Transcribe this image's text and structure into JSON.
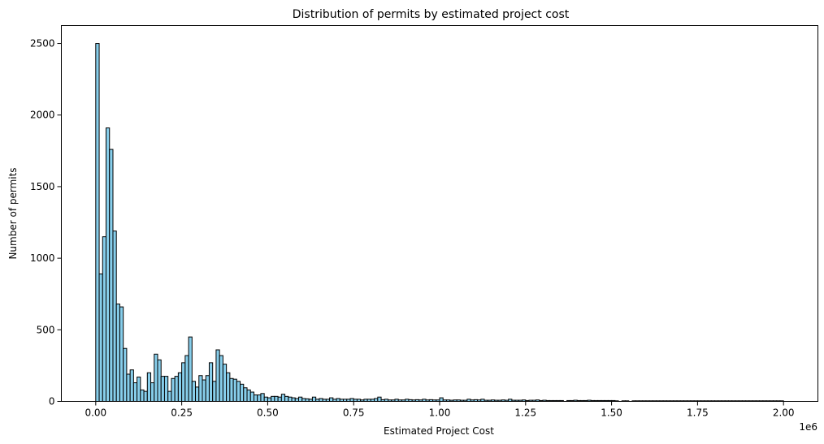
{
  "chart_data": {
    "type": "bar",
    "title": "Distribution of permits by estimated project cost",
    "xlabel": "Estimated Project Cost",
    "ylabel": "Number of permits",
    "x_offset_text": "1e6",
    "xlim": [
      -0.1,
      2.1
    ],
    "ylim": [
      0,
      2625
    ],
    "x_ticks": [
      0.0,
      0.25,
      0.5,
      0.75,
      1.0,
      1.25,
      1.5,
      1.75,
      2.0
    ],
    "x_tick_labels": [
      "0.00",
      "0.25",
      "0.50",
      "0.75",
      "1.00",
      "1.25",
      "1.50",
      "1.75",
      "2.00"
    ],
    "y_ticks": [
      0,
      500,
      1000,
      1500,
      2000,
      2500
    ],
    "y_tick_labels": [
      "0",
      "500",
      "1000",
      "1500",
      "2000",
      "2500"
    ],
    "grid": false,
    "legend": "none",
    "bin_start": 0.0,
    "bin_width": 0.01,
    "bar_color": "#87CEEB",
    "edge_color": "#000000",
    "values": [
      2500,
      890,
      1150,
      1910,
      1760,
      1190,
      680,
      660,
      370,
      190,
      220,
      130,
      170,
      80,
      70,
      200,
      130,
      330,
      290,
      175,
      175,
      70,
      160,
      175,
      200,
      270,
      320,
      450,
      140,
      100,
      180,
      150,
      180,
      270,
      140,
      360,
      320,
      260,
      200,
      160,
      155,
      140,
      120,
      95,
      80,
      65,
      45,
      45,
      55,
      30,
      25,
      35,
      35,
      30,
      50,
      35,
      30,
      25,
      20,
      30,
      20,
      18,
      15,
      30,
      15,
      20,
      15,
      15,
      25,
      15,
      20,
      15,
      15,
      15,
      20,
      15,
      15,
      10,
      15,
      15,
      15,
      20,
      30,
      12,
      15,
      10,
      10,
      15,
      10,
      10,
      15,
      12,
      10,
      12,
      10,
      15,
      10,
      12,
      10,
      10,
      25,
      10,
      10,
      8,
      10,
      10,
      8,
      8,
      15,
      10,
      12,
      10,
      15,
      8,
      8,
      10,
      8,
      8,
      10,
      8,
      15,
      8,
      8,
      8,
      10,
      6,
      8,
      8,
      10,
      6,
      8,
      6,
      6,
      6,
      6,
      6,
      0,
      6,
      6,
      8,
      6,
      6,
      6,
      8,
      6,
      6,
      6,
      6,
      6,
      6,
      6,
      4,
      0,
      4,
      4,
      0,
      4,
      4,
      4,
      4,
      4,
      4,
      4,
      4,
      4,
      4,
      4,
      4,
      4,
      4,
      4,
      4,
      4,
      4,
      4,
      4,
      4,
      4,
      4,
      4,
      4,
      4,
      4,
      4,
      4,
      4,
      4,
      4,
      4,
      4,
      4,
      4,
      4,
      4,
      4,
      4,
      4,
      4,
      4,
      4
    ]
  }
}
